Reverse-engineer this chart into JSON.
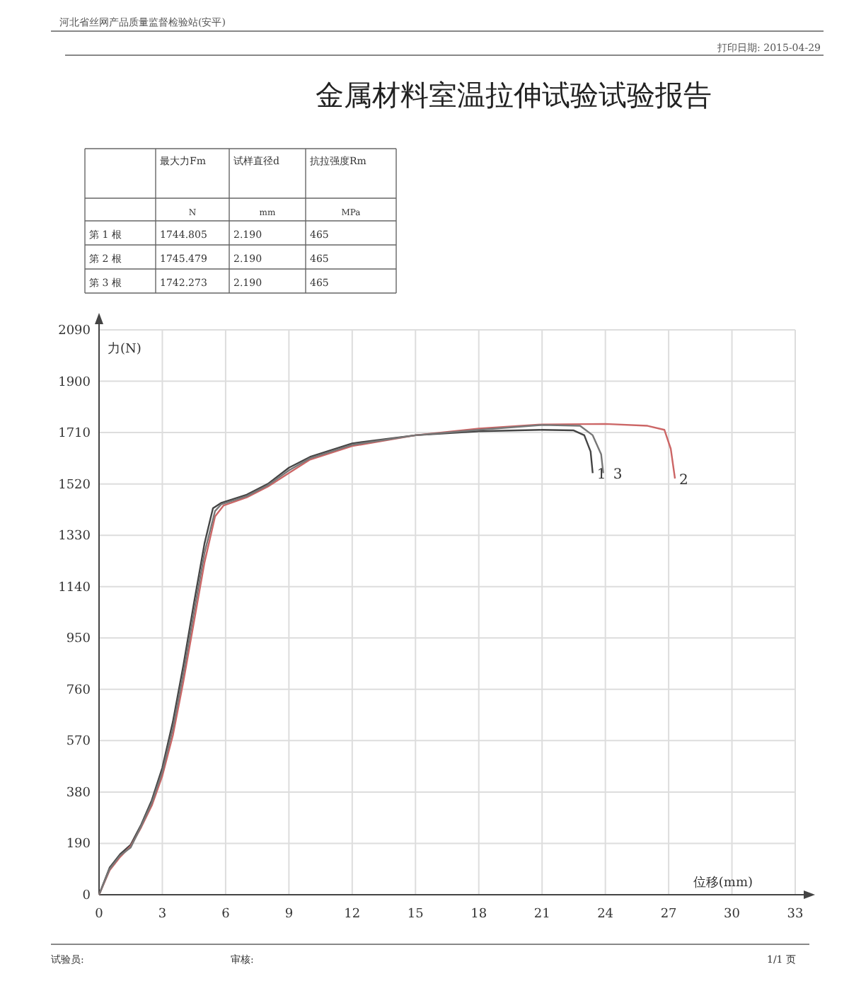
{
  "chart_data": {
    "type": "line",
    "title": "金属材料室温拉伸试验试验报告",
    "xlabel": "位移(mm)",
    "ylabel": "力(N)",
    "annotations": [
      "河北省丝网产品质量监督检验站(安平)",
      "打印日期: 2015-04-29",
      "最大力Fm",
      "试样直径d",
      "抗拉强度Rm",
      "N",
      "mm",
      "MPa",
      "第 1 根",
      "1744.805",
      "2.190",
      "465",
      "第 2 根",
      "1745.479",
      "2.190",
      "465",
      "第 3 根",
      "1742.273",
      "2.190",
      "465",
      "试验员:",
      "审核:",
      "1/1 页"
    ],
    "xlim": [
      0,
      33
    ],
    "xticks": [
      0,
      3,
      6,
      9,
      12,
      15,
      18,
      21,
      24,
      27,
      30,
      33
    ],
    "ylim": [
      0,
      2090
    ],
    "yticks": [
      0,
      190,
      380,
      570,
      760,
      950,
      1140,
      1330,
      1520,
      1710,
      1900,
      2090
    ],
    "grid": true,
    "series": [
      {
        "name": "1",
        "color": "#444444",
        "x": [
          0,
          0.5,
          1,
          1.5,
          2,
          2.5,
          3,
          3.5,
          4,
          4.5,
          5,
          5.4,
          5.8,
          7,
          8,
          9,
          10,
          12,
          15,
          18,
          21,
          22.5,
          23,
          23.3,
          23.4
        ],
        "values": [
          0,
          100,
          150,
          185,
          260,
          350,
          470,
          640,
          850,
          1080,
          1300,
          1430,
          1450,
          1480,
          1520,
          1580,
          1620,
          1670,
          1700,
          1715,
          1720,
          1718,
          1700,
          1640,
          1560
        ]
      },
      {
        "name": "2",
        "color": "#cc6666",
        "x": [
          0,
          0.5,
          1,
          1.5,
          2,
          2.5,
          3,
          3.5,
          4,
          4.5,
          5,
          5.5,
          5.9,
          7,
          8,
          9,
          10,
          12,
          15,
          18,
          21,
          24,
          26,
          26.8,
          27.1,
          27.3
        ],
        "values": [
          0,
          90,
          140,
          180,
          250,
          330,
          440,
          590,
          790,
          1010,
          1230,
          1400,
          1440,
          1470,
          1510,
          1560,
          1610,
          1660,
          1700,
          1725,
          1740,
          1742,
          1735,
          1720,
          1650,
          1540
        ]
      },
      {
        "name": "3",
        "color": "#777777",
        "x": [
          0,
          0.5,
          1,
          1.5,
          2,
          2.5,
          3,
          3.5,
          4,
          4.5,
          5,
          5.5,
          5.8,
          7,
          8,
          9,
          10,
          12,
          15,
          18,
          21,
          22.8,
          23.4,
          23.8,
          23.9
        ],
        "values": [
          0,
          95,
          145,
          175,
          255,
          340,
          455,
          615,
          820,
          1045,
          1265,
          1420,
          1445,
          1475,
          1515,
          1570,
          1615,
          1665,
          1700,
          1720,
          1738,
          1735,
          1700,
          1630,
          1560
        ]
      }
    ]
  }
}
